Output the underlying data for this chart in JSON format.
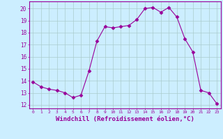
{
  "x": [
    0,
    1,
    2,
    3,
    4,
    5,
    6,
    7,
    8,
    9,
    10,
    11,
    12,
    13,
    14,
    15,
    16,
    17,
    18,
    19,
    20,
    21,
    22,
    23
  ],
  "y": [
    13.9,
    13.5,
    13.3,
    13.2,
    13.0,
    12.6,
    12.8,
    14.8,
    17.3,
    18.5,
    18.4,
    18.5,
    18.6,
    19.1,
    20.0,
    20.1,
    19.7,
    20.1,
    19.3,
    17.5,
    16.4,
    13.2,
    13.0,
    12.1
  ],
  "line_color": "#990099",
  "marker": "D",
  "marker_size": 2.5,
  "bg_color": "#cceeff",
  "grid_color": "#aacccc",
  "xlabel": "Windchill (Refroidissement éolien,°C)",
  "xlabel_fontsize": 6.5,
  "yticks": [
    12,
    13,
    14,
    15,
    16,
    17,
    18,
    19,
    20
  ],
  "ylim": [
    11.7,
    20.6
  ],
  "xlim": [
    -0.5,
    23.5
  ],
  "tick_color": "#990099",
  "spine_color": "#990099"
}
